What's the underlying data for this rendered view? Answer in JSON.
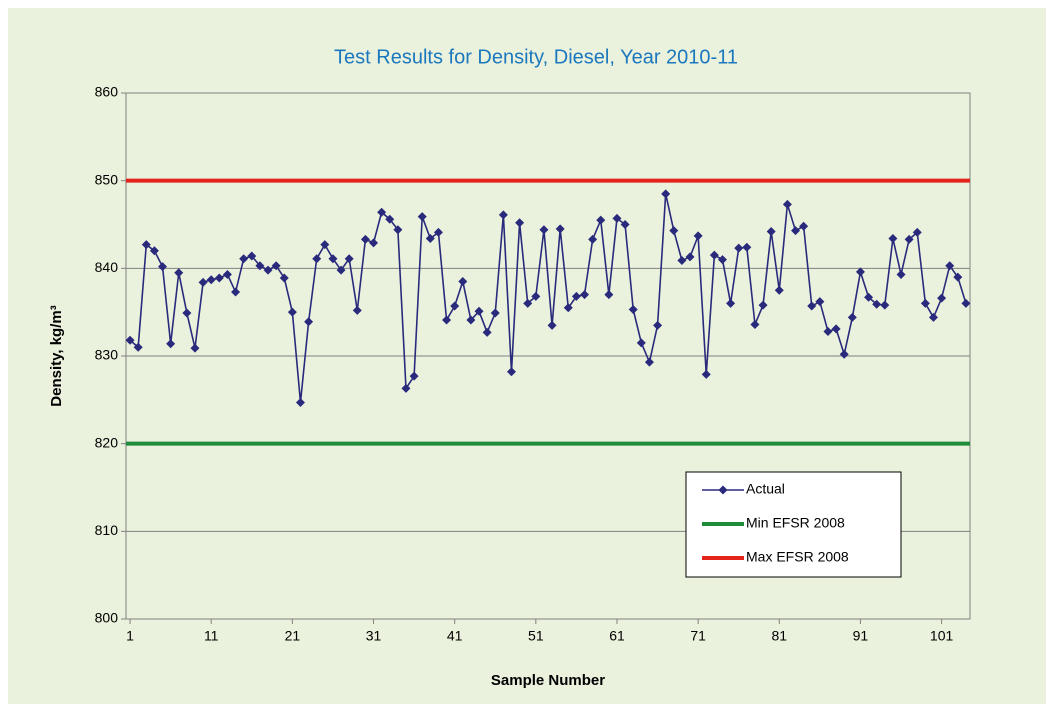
{
  "chart_data": {
    "type": "line",
    "title": "Test Results for Density, Diesel, Year 2010-11",
    "xlabel": "Sample Number",
    "ylabel": "Density, kg/m³",
    "x": [
      1,
      2,
      3,
      4,
      5,
      6,
      7,
      8,
      9,
      10,
      11,
      12,
      13,
      14,
      15,
      16,
      17,
      18,
      19,
      20,
      21,
      22,
      23,
      24,
      25,
      26,
      27,
      28,
      29,
      30,
      31,
      32,
      33,
      34,
      35,
      36,
      37,
      38,
      39,
      40,
      41,
      42,
      43,
      44,
      45,
      46,
      47,
      48,
      49,
      50,
      51,
      52,
      53,
      54,
      55,
      56,
      57,
      58,
      59,
      60,
      61,
      62,
      63,
      64,
      65,
      66,
      67,
      68,
      69,
      70,
      71,
      72,
      73,
      74,
      75,
      76,
      77,
      78,
      79,
      80,
      81,
      82,
      83,
      84,
      85,
      86,
      87,
      88,
      89,
      90,
      91,
      92,
      93,
      94,
      95,
      96,
      97,
      98,
      99,
      100,
      101,
      102,
      103,
      104
    ],
    "xlim": [
      0.5,
      104.5
    ],
    "xticks": [
      1,
      11,
      21,
      31,
      41,
      51,
      61,
      71,
      81,
      91,
      101
    ],
    "ylim": [
      800,
      860
    ],
    "yticks": [
      800,
      810,
      820,
      830,
      840,
      850,
      860
    ],
    "grid": true,
    "series": [
      {
        "name": "Actual",
        "color": "#2a2a7c",
        "marker": "diamond",
        "values": [
          831.8,
          831,
          842.7,
          842,
          840.2,
          831.4,
          839.5,
          834.9,
          830.9,
          838.4,
          838.7,
          838.9,
          839.3,
          837.3,
          841.1,
          841.4,
          840.3,
          839.8,
          840.3,
          838.9,
          835,
          824.7,
          833.9,
          841.1,
          842.7,
          841.1,
          839.8,
          841.1,
          835.2,
          843.3,
          842.9,
          846.4,
          845.6,
          844.4,
          826.3,
          827.7,
          845.9,
          843.4,
          844.1,
          834.1,
          835.7,
          838.5,
          834.1,
          835.1,
          832.7,
          834.9,
          846.1,
          828.2,
          845.2,
          836,
          836.8,
          844.4,
          833.5,
          844.5,
          835.5,
          836.8,
          837,
          843.3,
          845.5,
          837,
          845.7,
          845,
          835.3,
          831.5,
          829.3,
          833.5,
          848.5,
          844.3,
          840.9,
          841.3,
          843.7,
          827.9,
          841.5,
          841,
          836,
          842.3,
          842.4,
          833.6,
          835.8,
          844.2,
          837.5,
          847.3,
          844.3,
          844.8,
          835.7,
          836.2,
          832.8,
          833.1,
          830.2,
          834.4,
          839.6,
          836.7,
          835.9,
          835.8,
          843.4,
          839.3,
          843.3,
          844.1,
          836,
          834.4,
          836.6,
          840.3,
          839,
          836
        ]
      },
      {
        "name": "Min EFSR 2008",
        "color": "#1e8c3a",
        "value": 820
      },
      {
        "name": "Max EFSR 2008",
        "color": "#e3231c",
        "value": 850
      }
    ]
  }
}
